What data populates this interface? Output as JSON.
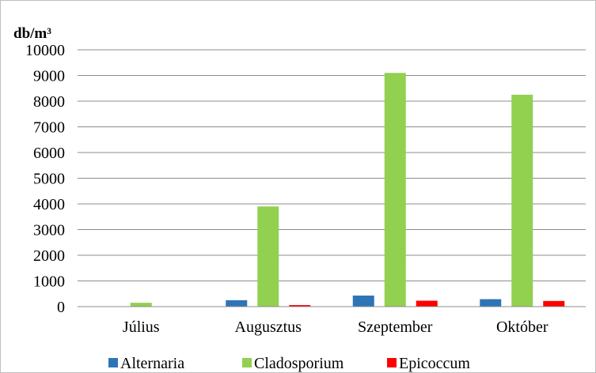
{
  "chart_data": {
    "type": "bar",
    "unit_label": "db/m³",
    "categories": [
      "Július",
      "Augusztus",
      "Szeptember",
      "Október"
    ],
    "series": [
      {
        "name": "Alternaria",
        "color": "#2e75b6",
        "values": [
          0,
          250,
          430,
          290
        ]
      },
      {
        "name": "Cladosporium",
        "color": "#92d050",
        "values": [
          150,
          3900,
          9100,
          8250
        ]
      },
      {
        "name": "Epicoccum",
        "color": "#ff0000",
        "values": [
          0,
          60,
          230,
          220
        ]
      }
    ],
    "ylim": [
      0,
      10000
    ],
    "yticks": [
      "0",
      "1000",
      "2000",
      "3000",
      "4000",
      "5000",
      "6000",
      "7000",
      "8000",
      "9000",
      "10000"
    ],
    "grid": true,
    "legend_position": "bottom"
  }
}
